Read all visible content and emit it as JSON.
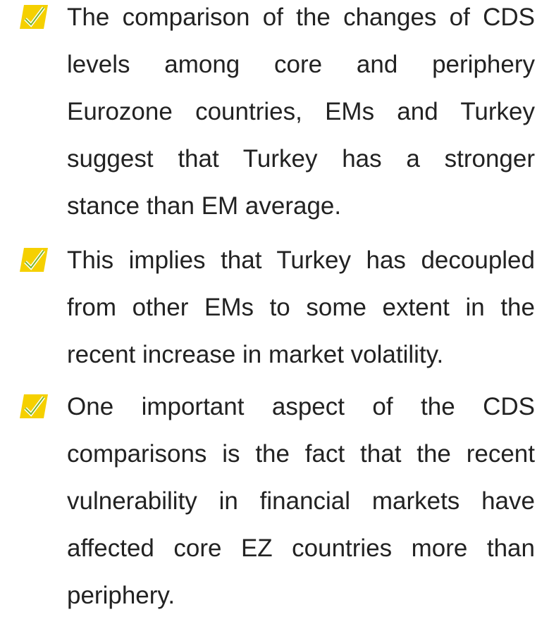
{
  "bullets": [
    {
      "lines": [
        "The comparison of the changes of CDS",
        "levels among core and periphery",
        "Eurozone countries, EMs and Turkey",
        "suggest that Turkey has a stronger",
        "stance than EM average."
      ]
    },
    {
      "lines": [
        "This implies that Turkey has decoupled",
        "from other EMs to some extent in the",
        "recent increase in market volatility."
      ]
    },
    {
      "lines": [
        "One important aspect of the CDS",
        "comparisons is the fact that the recent",
        "vulnerability in financial markets have",
        "affected core EZ countries more than",
        "periphery."
      ]
    }
  ]
}
